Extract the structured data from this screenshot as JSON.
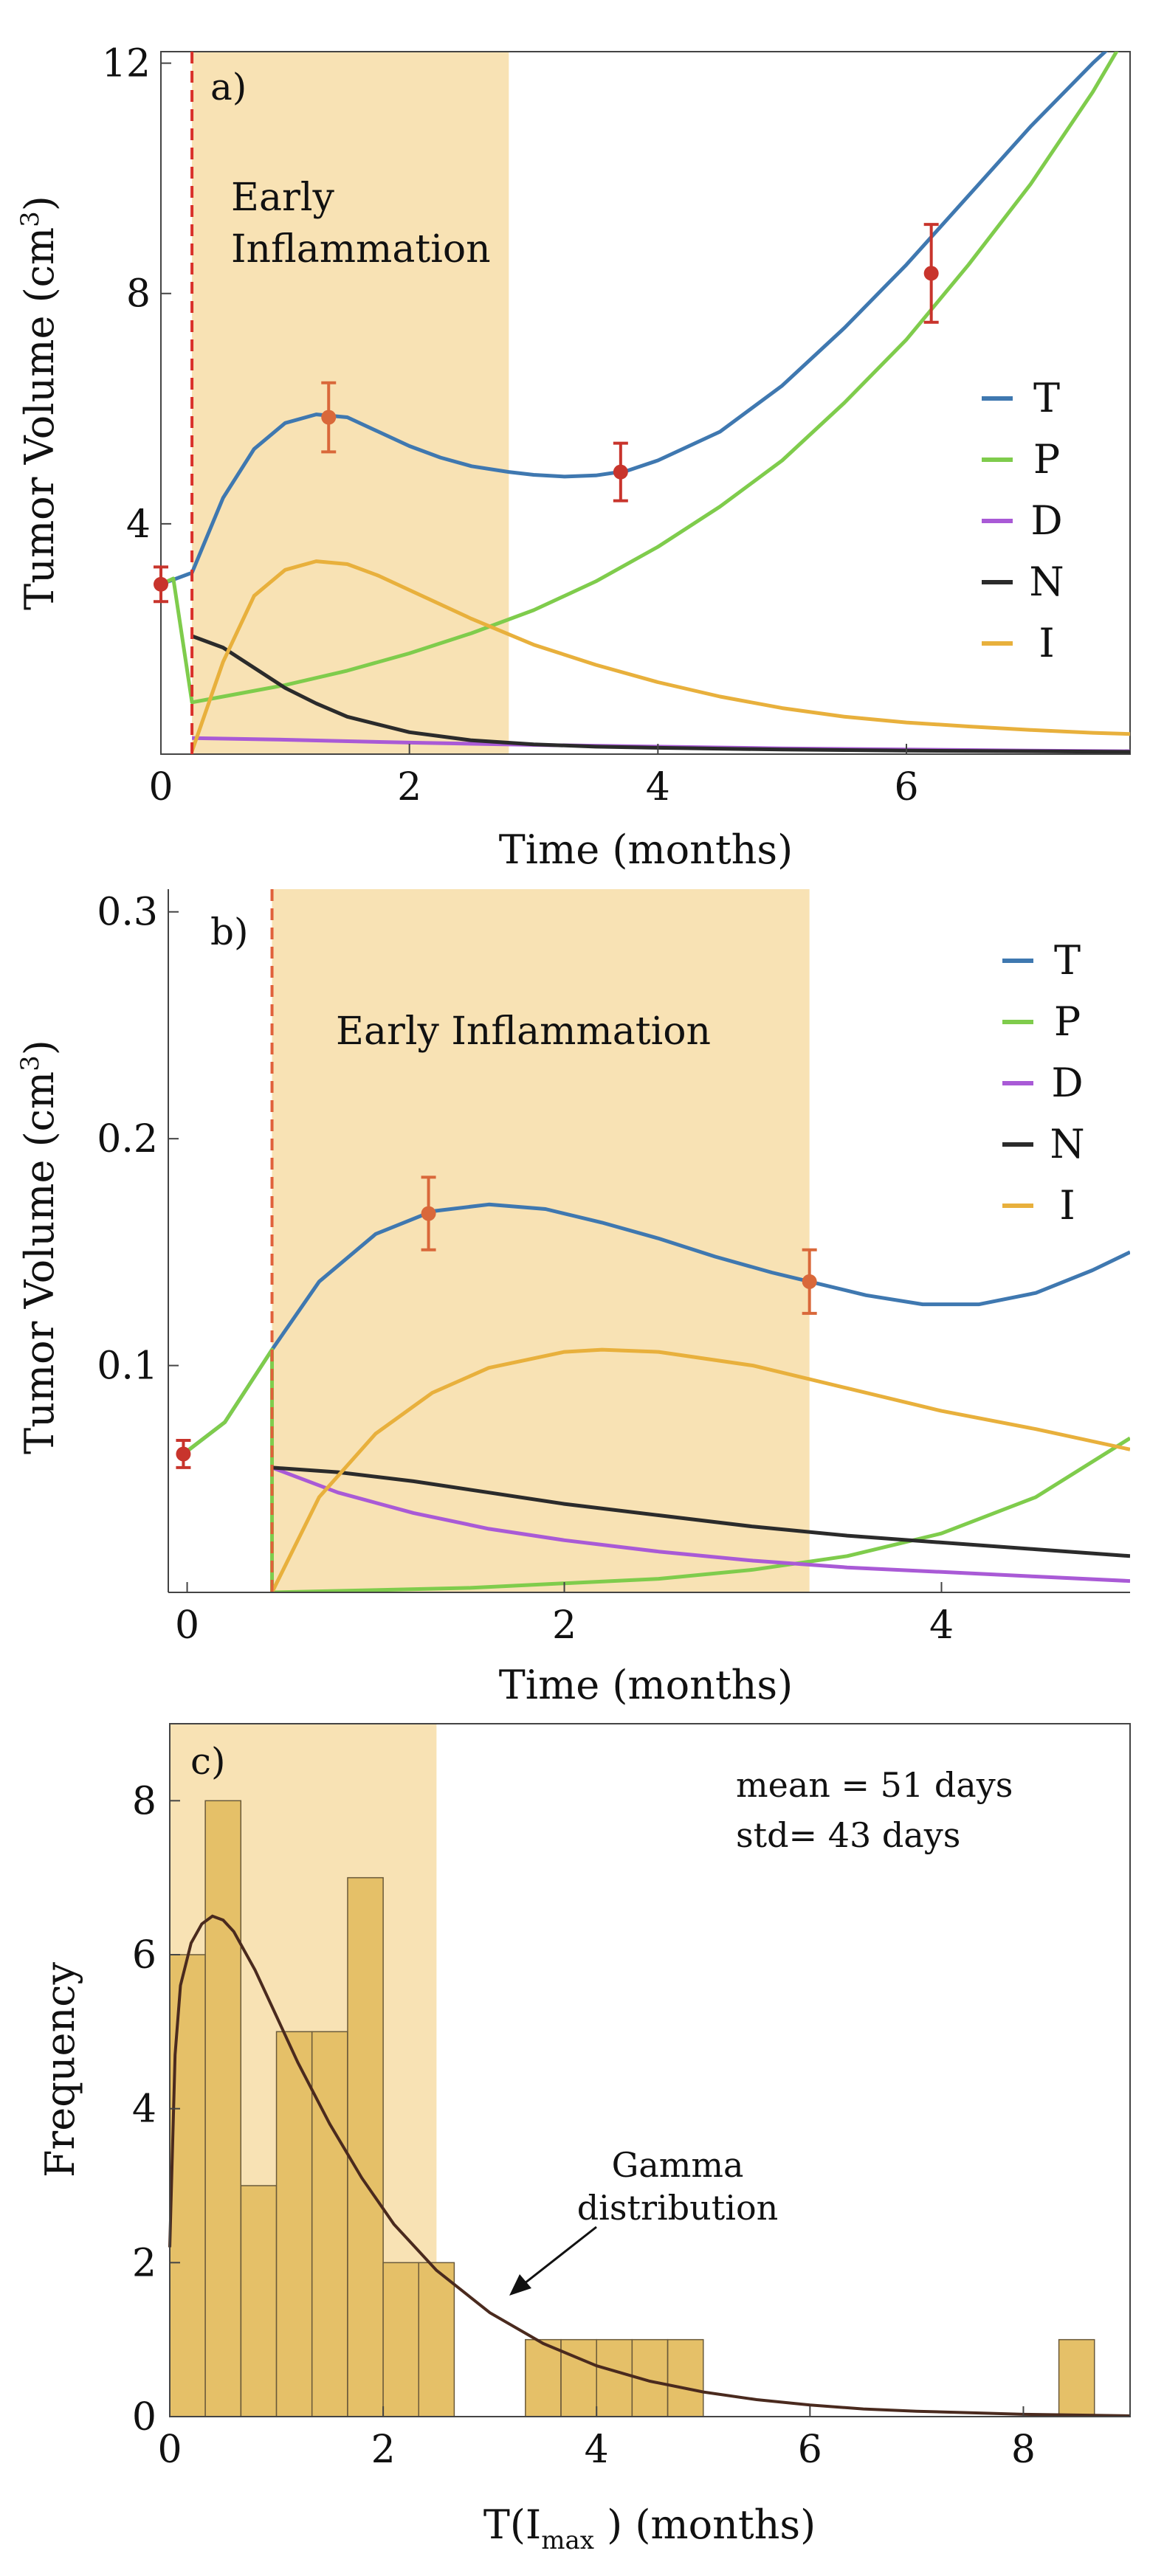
{
  "chart_data": [
    {
      "panel": "a)",
      "type": "line",
      "ylabel": "Tumor Volume (cm",
      "ylabel_sup": "3",
      "ylabel_close": ")",
      "xlabel": "Time (months)",
      "xlim": [
        0,
        7.8
      ],
      "ylim": [
        0,
        12.2
      ],
      "xticks": [
        0,
        2,
        4,
        6
      ],
      "yticks": [
        4,
        8,
        12
      ],
      "grid": false,
      "legend_position": "right",
      "shaded_region": {
        "x": [
          0.25,
          2.8
        ],
        "label_lines": [
          "Early",
          "Inflammation"
        ],
        "color": "#f8e2b4"
      },
      "vline": {
        "x": 0.25,
        "color": "#d9302a",
        "style": "dashed"
      },
      "series": [
        {
          "name": "T",
          "color": "#3f78b0",
          "x": [
            0,
            0.25,
            0.5,
            0.75,
            1.0,
            1.25,
            1.5,
            1.75,
            2.0,
            2.25,
            2.5,
            2.8,
            3.0,
            3.25,
            3.5,
            3.75,
            4.0,
            4.5,
            5.0,
            5.5,
            6.0,
            6.5,
            7.0,
            7.5,
            7.8
          ],
          "y": [
            2.95,
            3.15,
            4.45,
            5.3,
            5.75,
            5.9,
            5.85,
            5.6,
            5.35,
            5.15,
            5.0,
            4.9,
            4.85,
            4.82,
            4.84,
            4.92,
            5.1,
            5.6,
            6.4,
            7.4,
            8.5,
            9.7,
            10.9,
            12.0,
            12.6
          ]
        },
        {
          "name": "P",
          "color": "#7fcc4c",
          "x": [
            0,
            0.1,
            0.25,
            0.5,
            1.0,
            1.5,
            2.0,
            2.5,
            3.0,
            3.5,
            4.0,
            4.5,
            5.0,
            5.5,
            6.0,
            6.5,
            7.0,
            7.5,
            7.8
          ],
          "y": [
            2.95,
            3.05,
            0.9,
            1.0,
            1.2,
            1.45,
            1.75,
            2.1,
            2.5,
            3.0,
            3.6,
            4.3,
            5.1,
            6.1,
            7.2,
            8.5,
            9.9,
            11.5,
            12.6
          ]
        },
        {
          "name": "D",
          "color": "#a95ad6",
          "x": [
            0.25,
            1.0,
            2.0,
            3.0,
            4.0,
            5.0,
            6.0,
            7.0,
            7.8
          ],
          "y": [
            0.28,
            0.25,
            0.2,
            0.16,
            0.13,
            0.1,
            0.08,
            0.06,
            0.05
          ]
        },
        {
          "name": "N",
          "color": "#2b2b2b",
          "x": [
            0.25,
            0.5,
            0.75,
            1.0,
            1.25,
            1.5,
            2.0,
            2.5,
            3.0,
            3.5,
            4.0,
            5.0,
            6.0,
            7.0,
            7.8
          ],
          "y": [
            2.05,
            1.85,
            1.5,
            1.15,
            0.88,
            0.65,
            0.38,
            0.24,
            0.17,
            0.13,
            0.11,
            0.08,
            0.06,
            0.05,
            0.04
          ]
        },
        {
          "name": "I",
          "color": "#e8b03c",
          "x": [
            0.25,
            0.5,
            0.75,
            1.0,
            1.25,
            1.5,
            1.75,
            2.0,
            2.5,
            3.0,
            3.5,
            4.0,
            4.5,
            5.0,
            5.5,
            6.0,
            6.5,
            7.0,
            7.5,
            7.8
          ],
          "y": [
            0.05,
            1.6,
            2.75,
            3.2,
            3.35,
            3.3,
            3.1,
            2.85,
            2.35,
            1.9,
            1.55,
            1.25,
            1.0,
            0.8,
            0.65,
            0.55,
            0.48,
            0.42,
            0.37,
            0.35
          ]
        }
      ],
      "data_points": [
        {
          "x": 0,
          "y": 2.95,
          "err": 0.3,
          "color": "#c8342c"
        },
        {
          "x": 1.35,
          "y": 5.85,
          "err": 0.6,
          "color": "#d9683a"
        },
        {
          "x": 3.7,
          "y": 4.9,
          "err": 0.5,
          "color": "#c8342c"
        },
        {
          "x": 6.2,
          "y": 8.35,
          "err": 0.85,
          "color": "#c8342c"
        }
      ]
    },
    {
      "panel": "b)",
      "type": "line",
      "ylabel": "Tumor Volume (cm",
      "ylabel_sup": "3",
      "ylabel_close": ")",
      "xlabel": "Time (months)",
      "xlim": [
        -0.1,
        5.0
      ],
      "ylim": [
        0,
        0.31
      ],
      "xticks": [
        0,
        2,
        4
      ],
      "yticks": [
        0.1,
        0.2,
        0.3
      ],
      "grid": false,
      "legend_position": "top-right",
      "shaded_region": {
        "x": [
          0.45,
          3.3
        ],
        "label_lines": [
          "Early Inflammation"
        ],
        "color": "#f8e2b4"
      },
      "vline": {
        "x": 0.45,
        "color": "#e0603a",
        "style": "dashed"
      },
      "series": [
        {
          "name": "T",
          "color": "#3f78b0",
          "x": [
            -0.02,
            0.2,
            0.45,
            0.7,
            1.0,
            1.3,
            1.6,
            1.9,
            2.2,
            2.5,
            2.8,
            3.1,
            3.3,
            3.6,
            3.9,
            4.2,
            4.5,
            4.8,
            5.0
          ],
          "y": [
            0.061,
            0.075,
            0.107,
            0.137,
            0.158,
            0.168,
            0.171,
            0.169,
            0.163,
            0.156,
            0.148,
            0.141,
            0.137,
            0.131,
            0.127,
            0.127,
            0.132,
            0.142,
            0.15
          ]
        },
        {
          "name": "P",
          "color": "#7fcc4c",
          "x": [
            -0.02,
            0.2,
            0.45,
            0.45,
            1.0,
            1.5,
            2.0,
            2.5,
            3.0,
            3.5,
            4.0,
            4.5,
            5.0
          ],
          "y": [
            0.061,
            0.075,
            0.107,
            0.0,
            0.001,
            0.002,
            0.004,
            0.006,
            0.01,
            0.016,
            0.026,
            0.042,
            0.068
          ]
        },
        {
          "name": "D",
          "color": "#a95ad6",
          "x": [
            0.45,
            0.8,
            1.2,
            1.6,
            2.0,
            2.5,
            3.0,
            3.5,
            4.0,
            4.5,
            5.0
          ],
          "y": [
            0.055,
            0.044,
            0.035,
            0.028,
            0.023,
            0.018,
            0.014,
            0.011,
            0.009,
            0.007,
            0.005
          ]
        },
        {
          "name": "N",
          "color": "#2b2b2b",
          "x": [
            0.45,
            0.8,
            1.2,
            1.6,
            2.0,
            2.5,
            3.0,
            3.5,
            4.0,
            4.5,
            5.0
          ],
          "y": [
            0.055,
            0.053,
            0.049,
            0.044,
            0.039,
            0.034,
            0.029,
            0.025,
            0.022,
            0.019,
            0.016
          ]
        },
        {
          "name": "I",
          "color": "#e8b03c",
          "x": [
            0.45,
            0.7,
            1.0,
            1.3,
            1.6,
            2.0,
            2.2,
            2.5,
            3.0,
            3.5,
            4.0,
            4.5,
            5.0
          ],
          "y": [
            0.0,
            0.042,
            0.07,
            0.088,
            0.099,
            0.106,
            0.107,
            0.106,
            0.1,
            0.09,
            0.08,
            0.072,
            0.063
          ]
        }
      ],
      "data_points": [
        {
          "x": -0.02,
          "y": 0.061,
          "err": 0.006,
          "color": "#c8342c"
        },
        {
          "x": 1.28,
          "y": 0.167,
          "err": 0.016,
          "color": "#d9683a"
        },
        {
          "x": 3.3,
          "y": 0.137,
          "err": 0.014,
          "color": "#d9683a"
        }
      ]
    },
    {
      "panel": "c)",
      "type": "bar",
      "ylabel": "Frequency",
      "xlabel_prefix": "T(I",
      "xlabel_sub": "max",
      "xlabel_suffix": " ) (months)",
      "xlim": [
        0,
        9
      ],
      "ylim": [
        0,
        9
      ],
      "xticks": [
        0,
        2,
        4,
        6,
        8
      ],
      "yticks": [
        0,
        2,
        4,
        6,
        8
      ],
      "grid": false,
      "shaded_region": {
        "x": [
          0,
          2.5
        ],
        "color": "#f8e2b4"
      },
      "bin_width": 0.333,
      "bins": [
        {
          "x": 0.0,
          "value": 6
        },
        {
          "x": 0.333,
          "value": 8
        },
        {
          "x": 0.667,
          "value": 3
        },
        {
          "x": 1.0,
          "value": 5
        },
        {
          "x": 1.333,
          "value": 5
        },
        {
          "x": 1.667,
          "value": 7
        },
        {
          "x": 2.0,
          "value": 2
        },
        {
          "x": 2.333,
          "value": 2
        },
        {
          "x": 3.333,
          "value": 1
        },
        {
          "x": 3.667,
          "value": 1
        },
        {
          "x": 4.0,
          "value": 1
        },
        {
          "x": 4.333,
          "value": 1
        },
        {
          "x": 4.667,
          "value": 1
        },
        {
          "x": 8.333,
          "value": 1
        }
      ],
      "fit": {
        "name": "Gamma distribution",
        "color": "#4a2a1e",
        "x": [
          0.0,
          0.05,
          0.1,
          0.2,
          0.3,
          0.4,
          0.5,
          0.6,
          0.8,
          1.0,
          1.2,
          1.5,
          1.8,
          2.1,
          2.5,
          3.0,
          3.5,
          4.0,
          4.5,
          5.0,
          5.5,
          6.0,
          6.5,
          7.0,
          7.5,
          8.0,
          8.5,
          9.0
        ],
        "y": [
          2.2,
          4.7,
          5.6,
          6.15,
          6.4,
          6.5,
          6.45,
          6.3,
          5.8,
          5.2,
          4.6,
          3.8,
          3.1,
          2.5,
          1.9,
          1.35,
          0.95,
          0.66,
          0.46,
          0.32,
          0.22,
          0.15,
          0.1,
          0.07,
          0.05,
          0.03,
          0.02,
          0.01
        ]
      },
      "annotations": {
        "stats_mean": "mean = 51 days",
        "stats_std": "std= 43 days",
        "arrow_label_line1": "Gamma",
        "arrow_label_line2": "distribution"
      }
    }
  ]
}
